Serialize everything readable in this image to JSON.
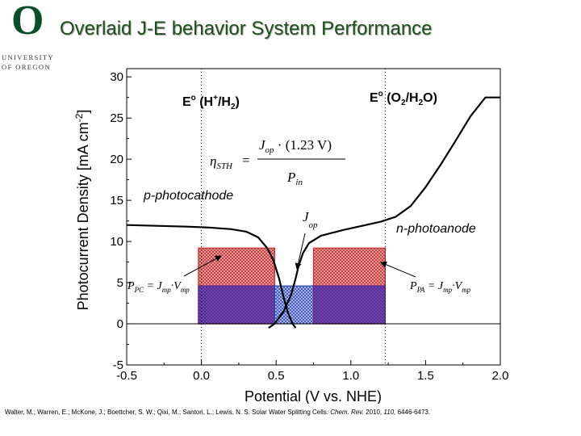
{
  "header": {
    "title": "Overlaid J-E behavior System Performance",
    "logo": {
      "letter": "O",
      "line1": "UNIVERSITY",
      "line2": "OF OREGON",
      "color": "#0a4f2a"
    }
  },
  "citation": {
    "authors": "Walter, M.; Warren, E.; McKone, J.; Boettcher, S. W.; Qixi, M.; Santori, L.; Lewis, N. S. Solar Water Splitting Cells.",
    "journal": "Chem. Rev.",
    "year": "2010,",
    "volume": "110,",
    "pages": "6446-6473."
  },
  "chart_data": {
    "type": "line",
    "xlabel": "Potential (V vs. NHE)",
    "ylabel": "Photocurrent Density [mA cm⁻²]",
    "xlim": [
      -0.5,
      2.0
    ],
    "ylim": [
      -5,
      31
    ],
    "xticks": [
      "-0.5",
      "0.0",
      "0.5",
      "1.0",
      "1.5",
      "2.0"
    ],
    "yticks": [
      "-5",
      "0",
      "5",
      "10",
      "15",
      "20",
      "25",
      "30"
    ],
    "reference_lines": [
      {
        "x": 0.0,
        "label": "E° (H⁺/H₂)",
        "style": "dotted"
      },
      {
        "x": 1.23,
        "label": "E° (O₂/H₂O)",
        "style": "dotted"
      }
    ],
    "series": [
      {
        "name": "p-photocathode",
        "points": [
          [
            -0.5,
            12.0
          ],
          [
            -0.3,
            11.9
          ],
          [
            -0.1,
            11.8
          ],
          [
            0.05,
            11.7
          ],
          [
            0.2,
            11.5
          ],
          [
            0.3,
            11.2
          ],
          [
            0.38,
            10.5
          ],
          [
            0.44,
            9.2
          ],
          [
            0.48,
            7.8
          ],
          [
            0.52,
            5.5
          ],
          [
            0.55,
            3.2
          ],
          [
            0.58,
            1.3
          ],
          [
            0.61,
            0.0
          ],
          [
            0.63,
            -0.5
          ]
        ]
      },
      {
        "name": "n-photoanode",
        "points": [
          [
            0.45,
            -0.5
          ],
          [
            0.49,
            0.0
          ],
          [
            0.55,
            1.5
          ],
          [
            0.6,
            3.5
          ],
          [
            0.63,
            5.5
          ],
          [
            0.65,
            7.0
          ],
          [
            0.68,
            8.6
          ],
          [
            0.72,
            9.8
          ],
          [
            0.8,
            10.7
          ],
          [
            0.95,
            11.4
          ],
          [
            1.1,
            12.0
          ],
          [
            1.2,
            12.4
          ],
          [
            1.3,
            13.0
          ],
          [
            1.4,
            14.3
          ],
          [
            1.5,
            16.6
          ],
          [
            1.6,
            19.3
          ],
          [
            1.7,
            22.2
          ],
          [
            1.8,
            25.2
          ],
          [
            1.9,
            27.5
          ],
          [
            2.0,
            27.5
          ]
        ]
      }
    ],
    "rectangles": [
      {
        "x0": -0.02,
        "x1": 0.49,
        "y0": 0,
        "y1": 9.2,
        "color": "#cc2b2b"
      },
      {
        "x0": -0.02,
        "x1": 0.49,
        "y0": 0,
        "y1": 4.6,
        "color": "#5c2a91"
      },
      {
        "x0": 0.49,
        "x1": 0.75,
        "y0": 0,
        "y1": 4.6,
        "color": "#2b46b8"
      },
      {
        "x0": 0.75,
        "x1": 1.23,
        "y0": 0,
        "y1": 9.2,
        "color": "#cc2b2b"
      },
      {
        "x0": 0.75,
        "x1": 1.23,
        "y0": 0,
        "y1": 4.6,
        "color": "#5c2a91"
      }
    ],
    "labels": {
      "ref_left": "E° (H⁺/H₂)",
      "ref_right": "E° (O₂/H₂O)",
      "p_curve": "p-photocathode",
      "n_curve": "n-photoanode",
      "eta_lhs": "ηSTH",
      "eta_numer": "Jop · (1.23 V)",
      "eta_denom": "Pin",
      "jop": "Jop",
      "ppc": "PPC = Jmp · Vmp",
      "ppa": "PPA = Jmp · Vmp"
    }
  }
}
